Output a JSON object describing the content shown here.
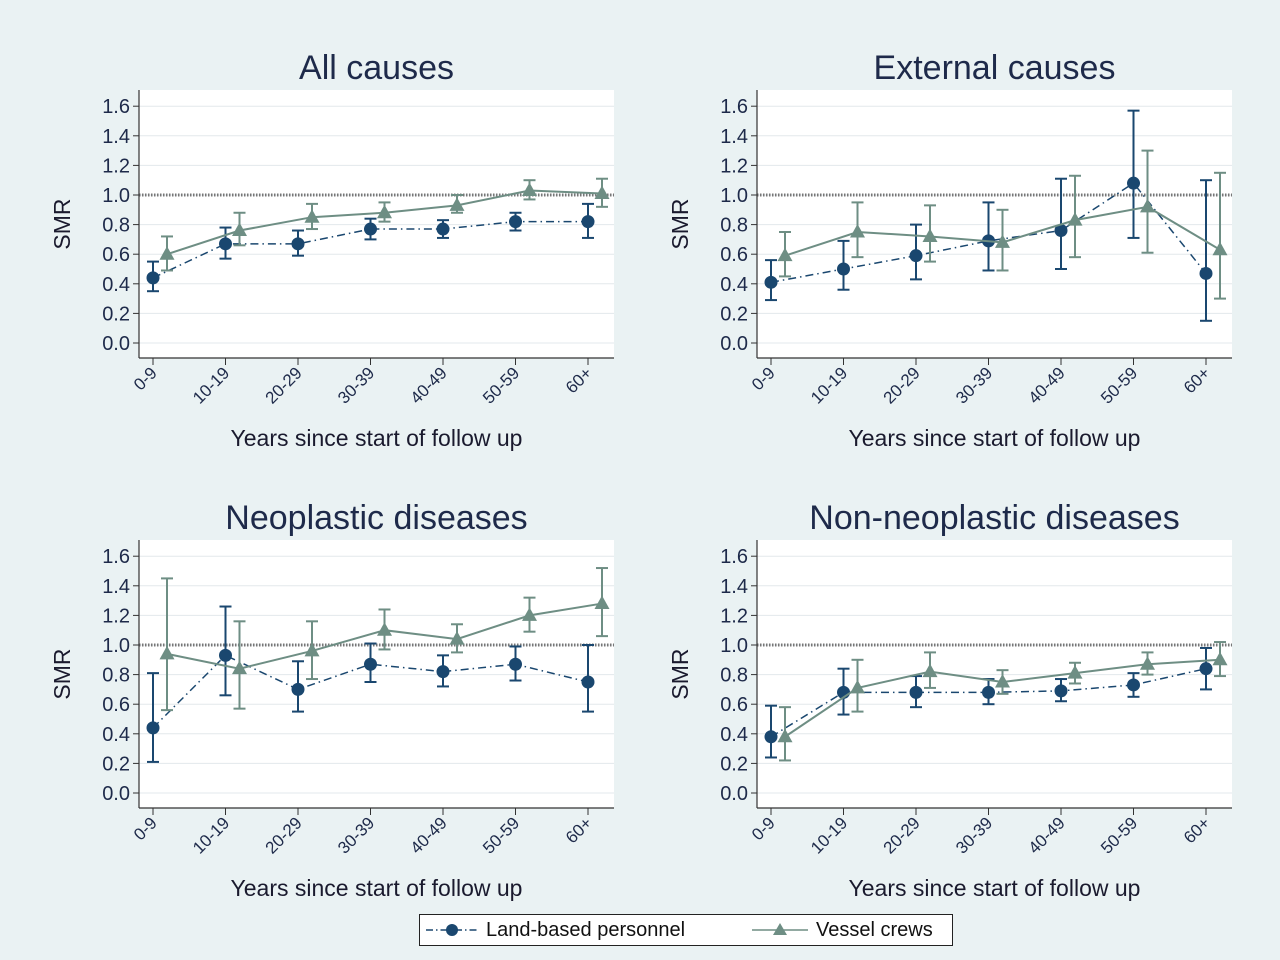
{
  "legend": {
    "land_label": "Land-based personnel",
    "vessel_label": "Vessel crews",
    "position": "bottom-center"
  },
  "colors": {
    "background": "#eaf2f3",
    "plot_bg": "#ffffff",
    "land": "#1a476f",
    "vessel": "#6e8e84",
    "text": "#1e2a4a",
    "grid": "#e3e8ec",
    "reference": "#777777"
  },
  "chart_data": [
    {
      "type": "line",
      "title": "All causes",
      "xlabel": "Years since start of follow up",
      "ylabel": "SMR",
      "categories": [
        "0-9",
        "10-19",
        "20-29",
        "30-39",
        "40-49",
        "50-59",
        "60+"
      ],
      "ylim": [
        0,
        1.6
      ],
      "yticks": [
        "0.0",
        "0.2",
        "0.4",
        "0.6",
        "0.8",
        "1.0",
        "1.2",
        "1.4",
        "1.6"
      ],
      "reference_line": 1.0,
      "grid": true,
      "series": [
        {
          "name": "Land-based personnel",
          "marker": "circle",
          "values": [
            0.44,
            0.67,
            0.67,
            0.77,
            0.77,
            0.82,
            0.82
          ],
          "lower": [
            0.35,
            0.57,
            0.59,
            0.7,
            0.71,
            0.76,
            0.71
          ],
          "upper": [
            0.55,
            0.78,
            0.76,
            0.84,
            0.83,
            0.88,
            0.94
          ]
        },
        {
          "name": "Vessel crews",
          "marker": "triangle",
          "values": [
            0.6,
            0.76,
            0.85,
            0.88,
            0.93,
            1.03,
            1.01
          ],
          "lower": [
            0.49,
            0.66,
            0.77,
            0.82,
            0.88,
            0.97,
            0.92
          ],
          "upper": [
            0.72,
            0.88,
            0.94,
            0.95,
            1.0,
            1.1,
            1.11
          ]
        }
      ]
    },
    {
      "type": "line",
      "title": "External causes",
      "xlabel": "Years since start of follow up",
      "ylabel": "SMR",
      "categories": [
        "0-9",
        "10-19",
        "20-29",
        "30-39",
        "40-49",
        "50-59",
        "60+"
      ],
      "ylim": [
        0,
        1.6
      ],
      "yticks": [
        "0.0",
        "0.2",
        "0.4",
        "0.6",
        "0.8",
        "1.0",
        "1.2",
        "1.4",
        "1.6"
      ],
      "reference_line": 1.0,
      "grid": true,
      "series": [
        {
          "name": "Land-based personnel",
          "marker": "circle",
          "values": [
            0.41,
            0.5,
            0.59,
            0.69,
            0.76,
            1.08,
            0.47
          ],
          "lower": [
            0.29,
            0.36,
            0.43,
            0.49,
            0.5,
            0.71,
            0.15
          ],
          "upper": [
            0.56,
            0.69,
            0.8,
            0.95,
            1.11,
            1.57,
            1.1
          ]
        },
        {
          "name": "Vessel crews",
          "marker": "triangle",
          "values": [
            0.59,
            0.75,
            0.72,
            0.68,
            0.83,
            0.92,
            0.63
          ],
          "lower": [
            0.45,
            0.58,
            0.55,
            0.49,
            0.58,
            0.61,
            0.3
          ],
          "upper": [
            0.75,
            0.95,
            0.93,
            0.9,
            1.13,
            1.3,
            1.15
          ]
        }
      ]
    },
    {
      "type": "line",
      "title": "Neoplastic diseases",
      "xlabel": "Years since start of follow up",
      "ylabel": "SMR",
      "categories": [
        "0-9",
        "10-19",
        "20-29",
        "30-39",
        "40-49",
        "50-59",
        "60+"
      ],
      "ylim": [
        0,
        1.6
      ],
      "yticks": [
        "0.0",
        "0.2",
        "0.4",
        "0.6",
        "0.8",
        "1.0",
        "1.2",
        "1.4",
        "1.6"
      ],
      "reference_line": 1.0,
      "grid": true,
      "series": [
        {
          "name": "Land-based personnel",
          "marker": "circle",
          "values": [
            0.44,
            0.93,
            0.7,
            0.87,
            0.82,
            0.87,
            0.75
          ],
          "lower": [
            0.21,
            0.66,
            0.55,
            0.75,
            0.72,
            0.76,
            0.55
          ],
          "upper": [
            0.81,
            1.26,
            0.89,
            1.01,
            0.93,
            0.99,
            1.0
          ]
        },
        {
          "name": "Vessel crews",
          "marker": "triangle",
          "values": [
            0.94,
            0.84,
            0.96,
            1.1,
            1.04,
            1.2,
            1.28
          ],
          "lower": [
            0.56,
            0.57,
            0.77,
            0.97,
            0.95,
            1.09,
            1.06
          ],
          "upper": [
            1.45,
            1.16,
            1.16,
            1.24,
            1.14,
            1.32,
            1.52
          ]
        }
      ]
    },
    {
      "type": "line",
      "title": "Non-neoplastic diseases",
      "xlabel": "Years since start of follow up",
      "ylabel": "SMR",
      "categories": [
        "0-9",
        "10-19",
        "20-29",
        "30-39",
        "40-49",
        "50-59",
        "60+"
      ],
      "ylim": [
        0,
        1.6
      ],
      "yticks": [
        "0.0",
        "0.2",
        "0.4",
        "0.6",
        "0.8",
        "1.0",
        "1.2",
        "1.4",
        "1.6"
      ],
      "reference_line": 1.0,
      "grid": true,
      "series": [
        {
          "name": "Land-based personnel",
          "marker": "circle",
          "values": [
            0.38,
            0.68,
            0.68,
            0.68,
            0.69,
            0.73,
            0.84
          ],
          "lower": [
            0.24,
            0.53,
            0.58,
            0.6,
            0.62,
            0.65,
            0.7
          ],
          "upper": [
            0.59,
            0.84,
            0.79,
            0.77,
            0.77,
            0.81,
            0.98
          ]
        },
        {
          "name": "Vessel crews",
          "marker": "triangle",
          "values": [
            0.38,
            0.71,
            0.82,
            0.75,
            0.81,
            0.87,
            0.9
          ],
          "lower": [
            0.22,
            0.55,
            0.71,
            0.67,
            0.74,
            0.8,
            0.79
          ],
          "upper": [
            0.58,
            0.9,
            0.95,
            0.83,
            0.88,
            0.95,
            1.02
          ]
        }
      ]
    }
  ]
}
